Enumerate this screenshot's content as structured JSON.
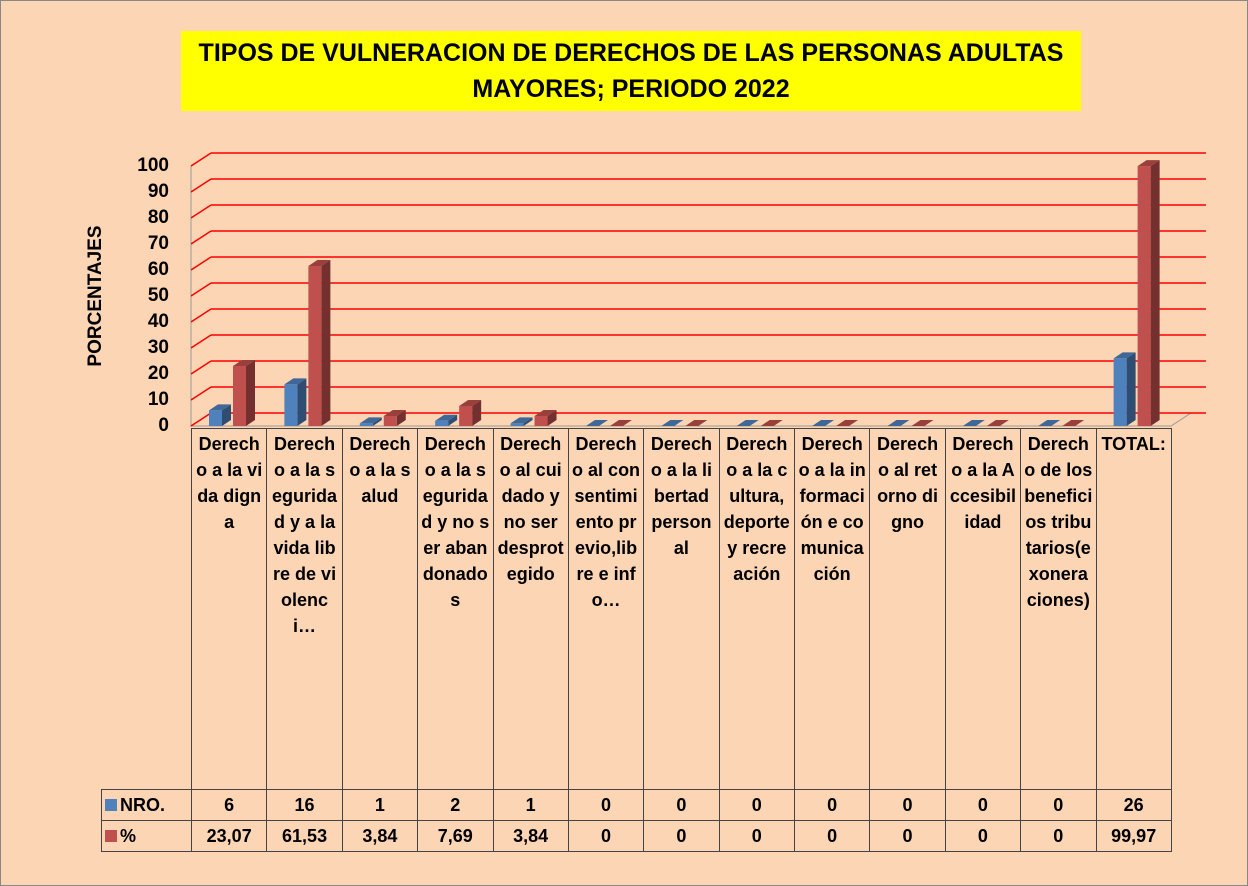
{
  "chart_data": {
    "type": "bar3d",
    "title": "TIPOS DE VULNERACION DE DERECHOS DE LAS PERSONAS ADULTAS MAYORES; PERIODO 2022",
    "ylabel": "PORCENTAJES",
    "categories": [
      "Derecho a la vida digna",
      "Derecho a la seguridad y a la vida libre de violenci…",
      "Derecho a la salud",
      "Derecho a la seguridad y no ser abandonados",
      "Derecho al cuidado y no ser desprotegido",
      "Derecho al consentimiento previo,libre e info…",
      "Derecho a la libertad personal",
      "Derecho a la cultura, deporte y recreación",
      "Derecho a la información e comunicación",
      "Derecho al retorno digno",
      "Derecho a la Accesibilidad",
      "Derecho de los beneficios tributarios(exoneraciones)",
      "TOTAL:"
    ],
    "series": [
      {
        "name": "NRO.",
        "color": "#4f81bd",
        "values": [
          6,
          16,
          1,
          2,
          1,
          0,
          0,
          0,
          0,
          0,
          0,
          0,
          26
        ]
      },
      {
        "name": "%",
        "color": "#c0504d",
        "values": [
          23.07,
          61.53,
          3.84,
          7.69,
          3.84,
          0,
          0,
          0,
          0,
          0,
          0,
          0,
          99.97
        ],
        "value_labels": [
          "23,07",
          "61,53",
          "3,84",
          "7,69",
          "3,84",
          "0",
          "0",
          "0",
          "0",
          "0",
          "0",
          "0",
          "99,97"
        ]
      }
    ],
    "ylim": [
      0,
      100
    ],
    "yticks": [
      0,
      10,
      20,
      30,
      40,
      50,
      60,
      70,
      80,
      90,
      100
    ],
    "grid": true,
    "grid_color": "#ff0000"
  }
}
